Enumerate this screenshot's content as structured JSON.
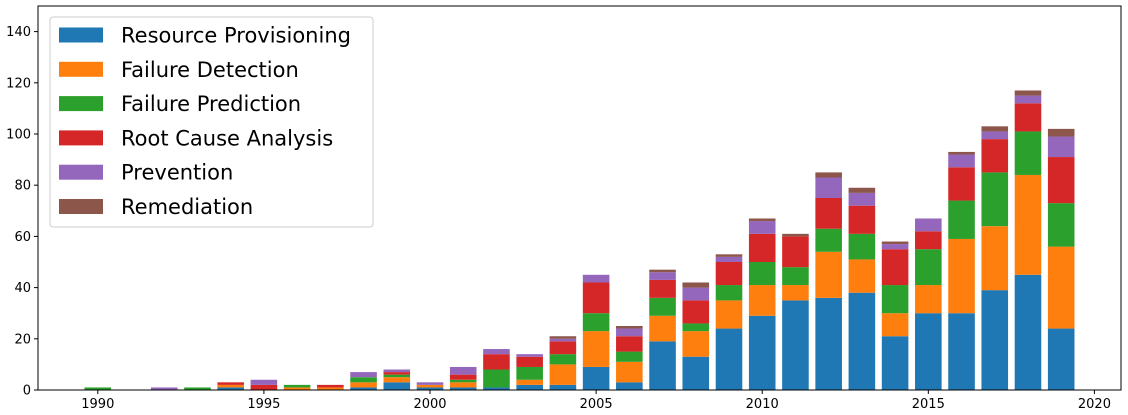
{
  "chart_data": {
    "type": "bar",
    "stacked": true,
    "title": "",
    "xlabel": "",
    "ylabel": "",
    "x": [
      1990,
      1991,
      1992,
      1993,
      1994,
      1995,
      1996,
      1997,
      1998,
      1999,
      2000,
      2001,
      2002,
      2003,
      2004,
      2005,
      2006,
      2007,
      2008,
      2009,
      2010,
      2011,
      2012,
      2013,
      2014,
      2015,
      2016,
      2017,
      2018,
      2019
    ],
    "xlim": [
      1988.2,
      2020.8
    ],
    "ylim": [
      0,
      150
    ],
    "xticks": [
      1990,
      1995,
      2000,
      2005,
      2010,
      2015,
      2020
    ],
    "xtick_labels": [
      "1990",
      "1995",
      "2000",
      "2005",
      "2010",
      "2015",
      "2020"
    ],
    "yticks": [
      0,
      20,
      40,
      60,
      80,
      100,
      120,
      140
    ],
    "ytick_labels": [
      "0",
      "20",
      "40",
      "60",
      "80",
      "100",
      "120",
      "140"
    ],
    "grid": false,
    "legend_position": "top-left",
    "series": [
      {
        "name": "Resource Provisioning",
        "color": "#1f77b4",
        "values": [
          0,
          0,
          0,
          0,
          1,
          0,
          0,
          0,
          1,
          3,
          1,
          1,
          1,
          2,
          2,
          9,
          3,
          19,
          13,
          24,
          29,
          35,
          36,
          38,
          21,
          30,
          30,
          39,
          45,
          24
        ]
      },
      {
        "name": "Failure Detection",
        "color": "#ff7f0e",
        "values": [
          0,
          0,
          0,
          0,
          1,
          0,
          1,
          1,
          2,
          2,
          1,
          2,
          0,
          2,
          8,
          14,
          8,
          10,
          10,
          11,
          12,
          6,
          18,
          13,
          9,
          11,
          29,
          25,
          39,
          32
        ]
      },
      {
        "name": "Failure Prediction",
        "color": "#2ca02c",
        "values": [
          1,
          0,
          0,
          1,
          0,
          0,
          1,
          0,
          2,
          1,
          0,
          1,
          7,
          5,
          4,
          7,
          4,
          7,
          3,
          6,
          9,
          7,
          9,
          10,
          11,
          14,
          15,
          21,
          17,
          17
        ]
      },
      {
        "name": "Root Cause Analysis",
        "color": "#d62728",
        "values": [
          0,
          0,
          0,
          0,
          1,
          2,
          0,
          1,
          0,
          1,
          0,
          2,
          6,
          4,
          5,
          12,
          6,
          7,
          9,
          9,
          11,
          12,
          12,
          11,
          14,
          7,
          13,
          13,
          11,
          18
        ]
      },
      {
        "name": "Prevention",
        "color": "#9467bd",
        "values": [
          0,
          0,
          1,
          0,
          0,
          2,
          0,
          0,
          2,
          1,
          1,
          3,
          2,
          1,
          1,
          3,
          3,
          3,
          5,
          2,
          5,
          0,
          8,
          5,
          2,
          5,
          5,
          3,
          3,
          8
        ]
      },
      {
        "name": "Remediation",
        "color": "#8c564b",
        "values": [
          0,
          0,
          0,
          0,
          0,
          0,
          0,
          0,
          0,
          0,
          0,
          0,
          0,
          0,
          1,
          0,
          1,
          1,
          2,
          1,
          1,
          1,
          2,
          2,
          1,
          0,
          1,
          2,
          2,
          3
        ]
      }
    ]
  }
}
